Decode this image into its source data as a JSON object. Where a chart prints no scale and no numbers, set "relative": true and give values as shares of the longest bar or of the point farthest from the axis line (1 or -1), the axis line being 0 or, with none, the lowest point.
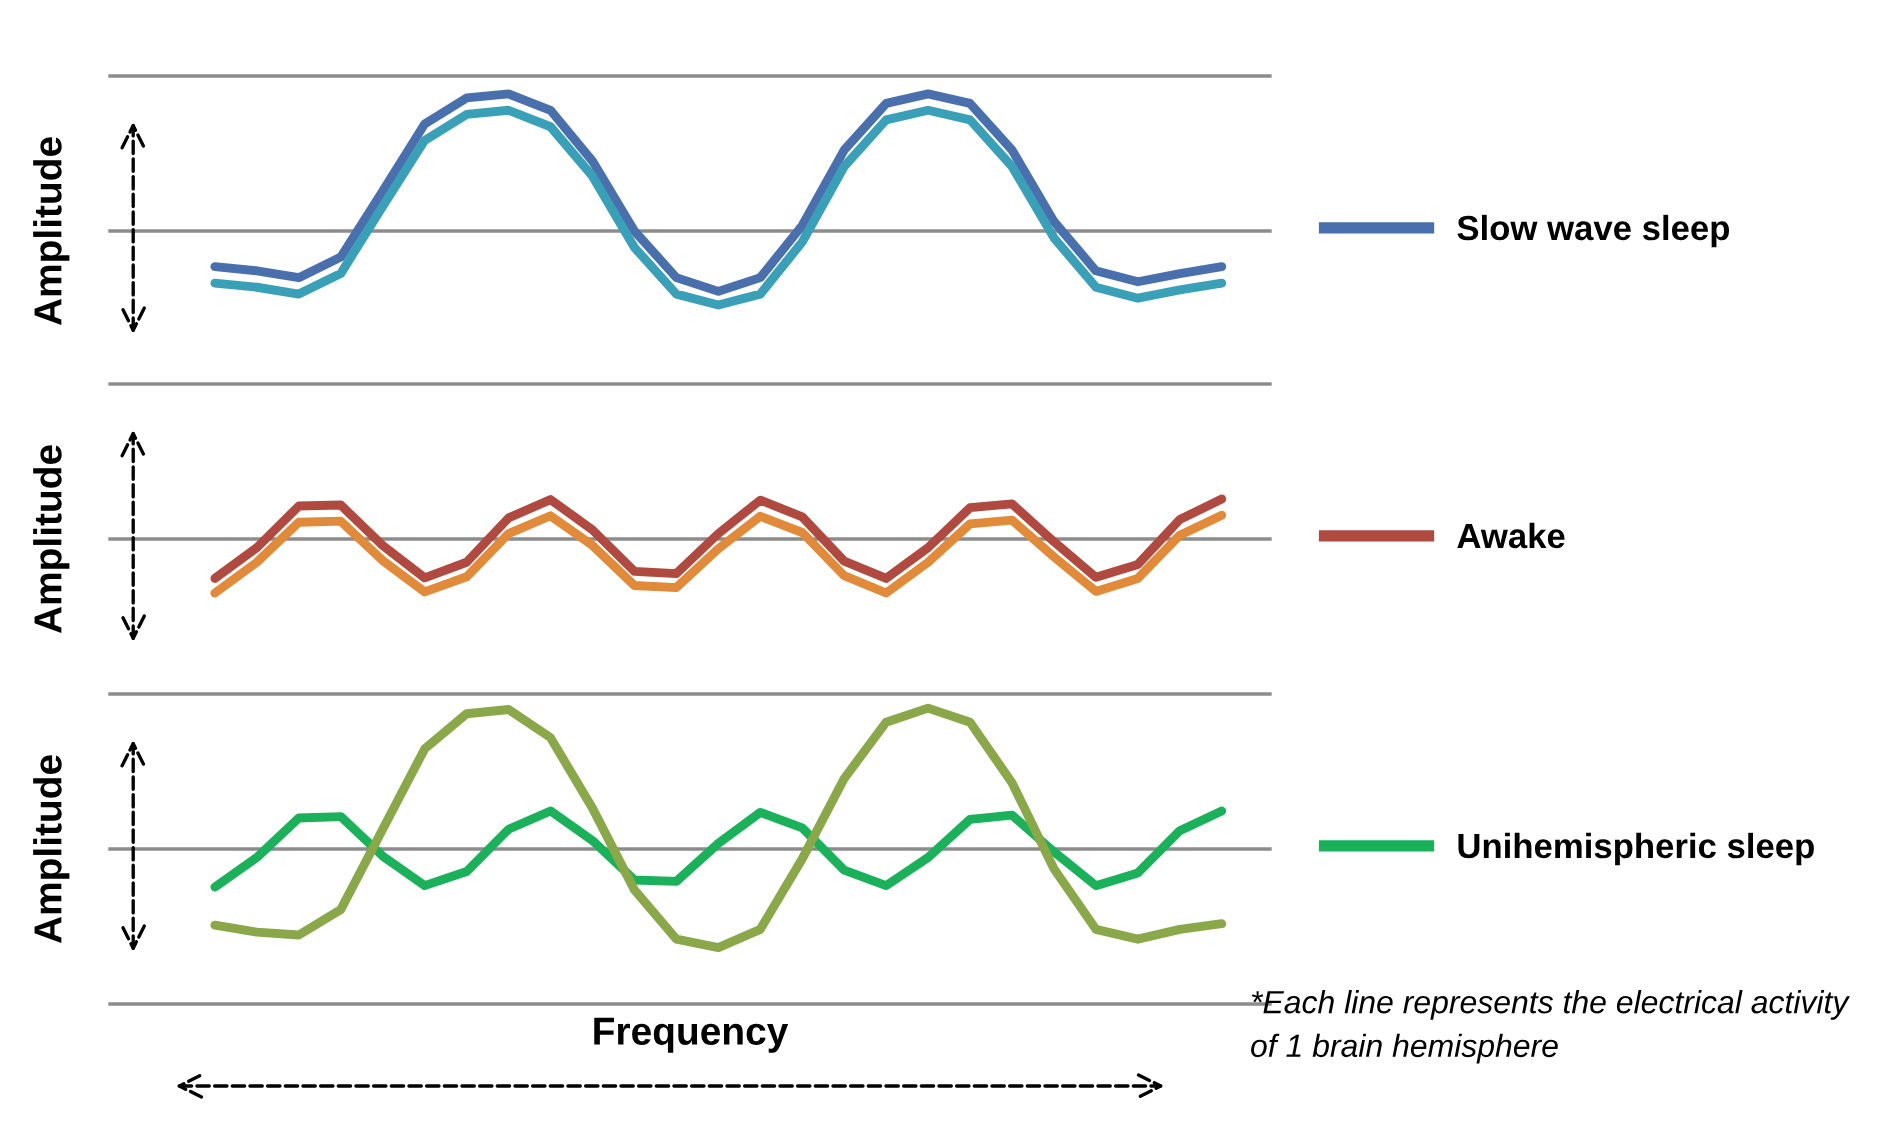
{
  "chart_data": [
    {
      "type": "line",
      "relative": true,
      "ylabel": "Amplitude",
      "legend": "right",
      "grid": false,
      "categories": [
        null,
        null,
        null,
        null,
        null,
        null,
        null,
        null,
        null,
        null,
        null,
        null,
        null,
        null,
        null,
        null,
        null,
        null,
        null,
        null,
        null,
        null,
        null,
        null,
        null
      ],
      "series": [
        {
          "name": "Slow wave sleep",
          "color": "#4a6fad",
          "values": [
            -0.26,
            -0.29,
            -0.34,
            -0.19,
            0.29,
            0.78,
            0.97,
            1.0,
            0.88,
            0.51,
            0,
            -0.34,
            -0.44,
            -0.34,
            0.04,
            0.59,
            0.93,
            1.0,
            0.93,
            0.59,
            0.07,
            -0.29,
            -0.37,
            -0.31,
            -0.26
          ]
        },
        {
          "color": "#3aa0b8",
          "values": [
            -0.38,
            -0.41,
            -0.46,
            -0.31,
            0.18,
            0.66,
            0.85,
            0.88,
            0.76,
            0.4,
            -0.12,
            -0.46,
            -0.54,
            -0.46,
            -0.08,
            0.47,
            0.81,
            0.88,
            0.81,
            0.47,
            -0.05,
            -0.41,
            -0.49,
            -0.43,
            -0.38
          ]
        }
      ]
    },
    {
      "type": "line",
      "relative": true,
      "ylabel": "Amplitude",
      "legend": "right",
      "grid": false,
      "categories": [
        null,
        null,
        null,
        null,
        null,
        null,
        null,
        null,
        null,
        null,
        null,
        null,
        null,
        null,
        null,
        null,
        null,
        null,
        null,
        null,
        null,
        null,
        null,
        null,
        null
      ],
      "series": [
        {
          "name": "Awake",
          "color": "#b04a40",
          "values": [
            -0.73,
            -0.16,
            0.61,
            0.63,
            -0.12,
            -0.72,
            -0.43,
            0.39,
            0.73,
            0.17,
            -0.6,
            -0.64,
            0.1,
            0.72,
            0.41,
            -0.41,
            -0.73,
            -0.16,
            0.58,
            0.65,
            -0.05,
            -0.71,
            -0.47,
            0.36,
            0.74
          ]
        },
        {
          "color": "#e08a3a",
          "values": [
            -1.0,
            -0.43,
            0.31,
            0.33,
            -0.4,
            -0.98,
            -0.7,
            0.1,
            0.43,
            -0.12,
            -0.86,
            -0.9,
            -0.18,
            0.42,
            0.12,
            -0.68,
            -1.0,
            -0.43,
            0.28,
            0.35,
            -0.33,
            -0.97,
            -0.73,
            0.07,
            0.44
          ]
        }
      ]
    },
    {
      "type": "line",
      "relative": true,
      "ylabel": "Amplitude",
      "xlabel": "Frequency",
      "legend": "right",
      "grid": false,
      "annotations": [
        "*Each line represents the electrical activity of 1 brain hemisphere"
      ],
      "categories": [
        null,
        null,
        null,
        null,
        null,
        null,
        null,
        null,
        null,
        null,
        null,
        null,
        null,
        null,
        null,
        null,
        null,
        null,
        null,
        null,
        null,
        null,
        null,
        null,
        null
      ],
      "series": [
        {
          "name": "Unihemispheric sleep",
          "color": "#1bb15a",
          "values": [
            -0.27,
            -0.06,
            0.22,
            0.23,
            -0.05,
            -0.26,
            -0.16,
            0.14,
            0.27,
            0.06,
            -0.22,
            -0.23,
            0.04,
            0.26,
            0.15,
            -0.15,
            -0.26,
            -0.06,
            0.21,
            0.24,
            -0.02,
            -0.26,
            -0.17,
            0.13,
            0.27
          ]
        },
        {
          "color": "#8aa84a",
          "values": [
            -0.54,
            -0.59,
            -0.61,
            -0.43,
            0.14,
            0.71,
            0.96,
            0.99,
            0.79,
            0.29,
            -0.29,
            -0.64,
            -0.7,
            -0.57,
            -0.07,
            0.5,
            0.9,
            1.0,
            0.9,
            0.47,
            -0.14,
            -0.57,
            -0.64,
            -0.57,
            -0.53
          ]
        }
      ]
    }
  ]
}
